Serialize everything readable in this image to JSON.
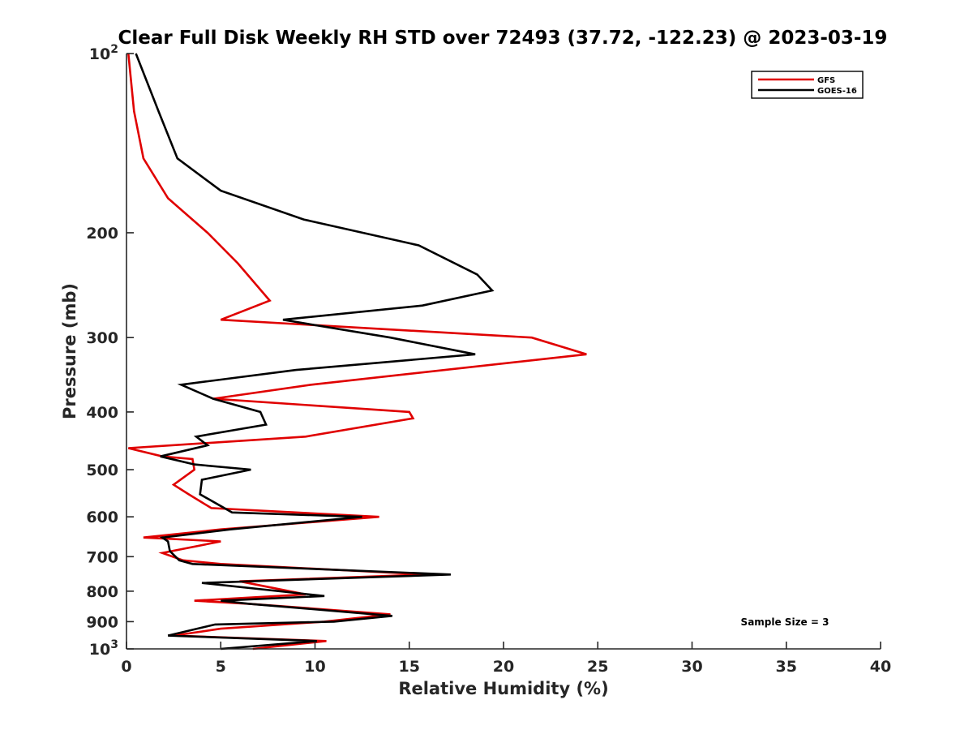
{
  "chart_data": {
    "type": "line",
    "title": "Clear Full Disk Weekly RH STD over 72493 (37.72, -122.23) @ 2023-03-19",
    "xlabel": "Relative Humidity (%)",
    "ylabel": "Pressure (mb)",
    "xlim": [
      0,
      40
    ],
    "ylim": [
      100,
      1000
    ],
    "yscale": "log",
    "y_reversed": true,
    "grid": false,
    "legend_position": "top-right",
    "x_ticks": [
      "0",
      "5",
      "10",
      "15",
      "20",
      "25",
      "30",
      "35",
      "40"
    ],
    "y_ticks": [
      {
        "value": 100,
        "label": "10",
        "sup": "2"
      },
      {
        "value": 200,
        "label": "200",
        "sup": ""
      },
      {
        "value": 300,
        "label": "300",
        "sup": ""
      },
      {
        "value": 400,
        "label": "400",
        "sup": ""
      },
      {
        "value": 500,
        "label": "500",
        "sup": ""
      },
      {
        "value": 600,
        "label": "600",
        "sup": ""
      },
      {
        "value": 700,
        "label": "700",
        "sup": ""
      },
      {
        "value": 800,
        "label": "800",
        "sup": ""
      },
      {
        "value": 900,
        "label": "900",
        "sup": ""
      },
      {
        "value": 1000,
        "label": "10",
        "sup": "3"
      }
    ],
    "annotation": "Sample Size = 3",
    "series": [
      {
        "name": "GFS",
        "color": "#e00000",
        "points": [
          [
            0.1,
            100
          ],
          [
            0.4,
            125
          ],
          [
            0.9,
            150
          ],
          [
            2.2,
            175
          ],
          [
            4.3,
            200
          ],
          [
            5.9,
            225
          ],
          [
            7.6,
            260
          ],
          [
            5.0,
            280
          ],
          [
            21.5,
            300
          ],
          [
            24.4,
            320
          ],
          [
            9.8,
            360
          ],
          [
            4.6,
            380
          ],
          [
            15.0,
            400
          ],
          [
            15.2,
            410
          ],
          [
            9.5,
            440
          ],
          [
            0.1,
            460
          ],
          [
            1.9,
            475
          ],
          [
            3.5,
            480
          ],
          [
            3.6,
            500
          ],
          [
            2.5,
            530
          ],
          [
            3.3,
            550
          ],
          [
            4.5,
            580
          ],
          [
            13.4,
            600
          ],
          [
            5.0,
            630
          ],
          [
            0.9,
            650
          ],
          [
            5.0,
            660
          ],
          [
            1.9,
            690
          ],
          [
            3.0,
            710
          ],
          [
            5.0,
            720
          ],
          [
            16.0,
            750
          ],
          [
            6.0,
            770
          ],
          [
            9.5,
            810
          ],
          [
            3.6,
            830
          ],
          [
            6.5,
            840
          ],
          [
            14.0,
            875
          ],
          [
            10.5,
            900
          ],
          [
            5.0,
            925
          ],
          [
            2.5,
            950
          ],
          [
            10.6,
            970
          ],
          [
            6.7,
            1000
          ]
        ]
      },
      {
        "name": "GOES-16",
        "color": "#000000",
        "points": [
          [
            0.5,
            100
          ],
          [
            1.7,
            125
          ],
          [
            2.7,
            150
          ],
          [
            5.0,
            170
          ],
          [
            9.4,
            190
          ],
          [
            15.5,
            210
          ],
          [
            18.6,
            235
          ],
          [
            19.4,
            250
          ],
          [
            15.7,
            265
          ],
          [
            8.3,
            280
          ],
          [
            14.0,
            300
          ],
          [
            18.5,
            320
          ],
          [
            9.0,
            340
          ],
          [
            2.9,
            360
          ],
          [
            4.6,
            380
          ],
          [
            7.1,
            400
          ],
          [
            7.4,
            420
          ],
          [
            3.7,
            440
          ],
          [
            4.3,
            455
          ],
          [
            1.8,
            475
          ],
          [
            3.6,
            490
          ],
          [
            6.6,
            500
          ],
          [
            4.0,
            520
          ],
          [
            3.9,
            550
          ],
          [
            5.6,
            590
          ],
          [
            12.5,
            600
          ],
          [
            5.5,
            630
          ],
          [
            1.9,
            650
          ],
          [
            2.2,
            660
          ],
          [
            2.3,
            685
          ],
          [
            2.8,
            710
          ],
          [
            3.5,
            720
          ],
          [
            17.2,
            750
          ],
          [
            4.0,
            775
          ],
          [
            10.5,
            815
          ],
          [
            5.0,
            830
          ],
          [
            6.5,
            840
          ],
          [
            14.1,
            880
          ],
          [
            11.0,
            900
          ],
          [
            4.7,
            910
          ],
          [
            2.2,
            950
          ],
          [
            10.1,
            970
          ],
          [
            5.0,
            1000
          ]
        ]
      }
    ]
  }
}
